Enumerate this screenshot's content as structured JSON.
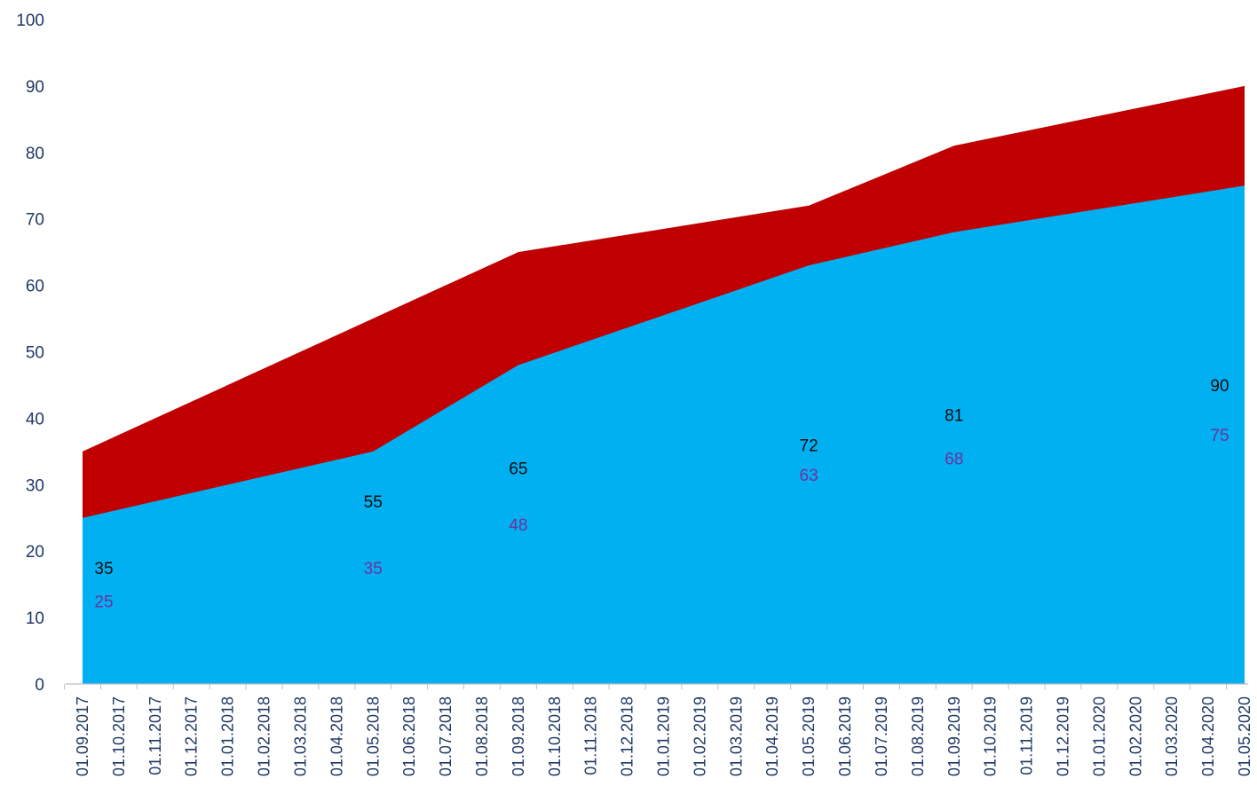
{
  "chart_data": {
    "type": "area",
    "title": "",
    "xlabel": "",
    "ylabel": "",
    "ylim": [
      0,
      100
    ],
    "yticks": [
      0,
      10,
      20,
      30,
      40,
      50,
      60,
      70,
      80,
      90,
      100
    ],
    "grid": false,
    "legend": "none",
    "stacked": false,
    "categories": [
      "01.09.2017",
      "01.10.2017",
      "01.11.2017",
      "01.12.2017",
      "01.01.2018",
      "01.02.2018",
      "01.03.2018",
      "01.04.2018",
      "01.05.2018",
      "01.06.2018",
      "01.07.2018",
      "01.08.2018",
      "01.09.2018",
      "01.10.2018",
      "01.11.2018",
      "01.12.2018",
      "01.01.2019",
      "01.02.2019",
      "01.03.2019",
      "01.04.2019",
      "01.05.2019",
      "01.06.2019",
      "01.07.2019",
      "01.08.2019",
      "01.09.2019",
      "01.10.2019",
      "01.11.2019",
      "01.12.2019",
      "01.01.2020",
      "01.02.2020",
      "01.03.2020",
      "01.04.2020",
      "01.05.2020"
    ],
    "series": [
      {
        "color": "#c00000",
        "label_color": "#0d0d0d",
        "points": [
          {
            "x": "01.09.2017",
            "y": 35
          },
          {
            "x": "01.05.2018",
            "y": 55
          },
          {
            "x": "01.09.2018",
            "y": 65
          },
          {
            "x": "01.05.2019",
            "y": 72
          },
          {
            "x": "01.09.2019",
            "y": 81
          },
          {
            "x": "01.05.2020",
            "y": 90
          }
        ]
      },
      {
        "color": "#00b0f0",
        "label_color": "#7030a0",
        "points": [
          {
            "x": "01.09.2017",
            "y": 25
          },
          {
            "x": "01.05.2018",
            "y": 35
          },
          {
            "x": "01.09.2018",
            "y": 48
          },
          {
            "x": "01.05.2019",
            "y": 63
          },
          {
            "x": "01.09.2019",
            "y": 68
          },
          {
            "x": "01.05.2020",
            "y": 75
          }
        ]
      }
    ],
    "axis_color": "#bfbfbf",
    "tick_label_color": "#1f3864"
  }
}
